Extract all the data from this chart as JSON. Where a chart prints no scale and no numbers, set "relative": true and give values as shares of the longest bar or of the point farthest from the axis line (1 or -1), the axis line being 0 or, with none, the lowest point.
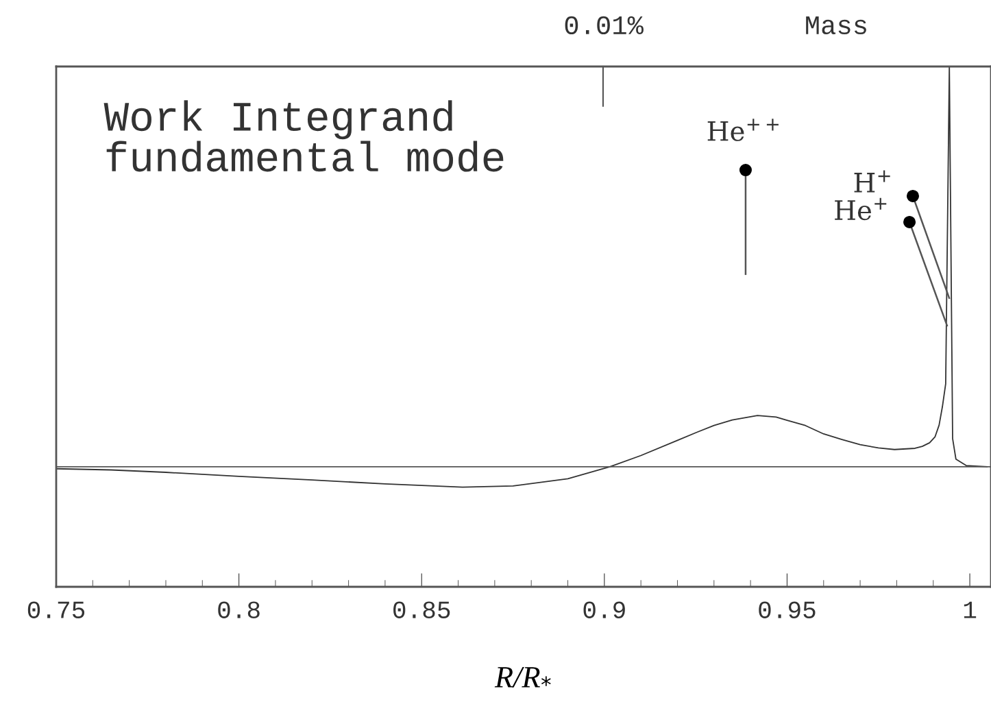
{
  "chart_data": {
    "type": "line",
    "relative": true,
    "xlabel": "R/R$_{*}$",
    "x": [
      0.75,
      0.765,
      0.78,
      0.8,
      0.82,
      0.84,
      0.8612,
      0.875,
      0.89,
      0.9015,
      0.91,
      0.92,
      0.925,
      0.93,
      0.935,
      0.9419,
      0.947,
      0.95,
      0.955,
      0.96,
      0.965,
      0.97,
      0.975,
      0.9794,
      0.985,
      0.987,
      0.989,
      0.9905,
      0.9916,
      0.9925,
      0.9934,
      0.9944,
      0.9953,
      0.9962,
      0.999,
      1.0047
    ],
    "values": [
      -0.005,
      -0.008,
      -0.014,
      -0.024,
      -0.033,
      -0.043,
      -0.051,
      -0.048,
      -0.03,
      0.0,
      0.028,
      0.066,
      0.085,
      0.103,
      0.117,
      0.128,
      0.124,
      0.116,
      0.103,
      0.082,
      0.068,
      0.055,
      0.047,
      0.043,
      0.046,
      0.051,
      0.06,
      0.075,
      0.104,
      0.15,
      0.207,
      1.0,
      0.07,
      0.019,
      0.003,
      0.0
    ],
    "color": "#333333",
    "xlim": [
      0.75,
      1.0058
    ],
    "xticks": [
      0.75,
      0.8,
      0.85,
      0.9,
      0.95,
      1
    ],
    "ref_lines": [
      {
        "axis": "y",
        "value": 0,
        "color": "#555555"
      }
    ],
    "annotations": [
      "Work Integrand\nfundamental mode",
      "0.01%",
      "Mass",
      "He$^{++}$",
      "H$^{+}$",
      "He$^{+}$"
    ]
  }
}
